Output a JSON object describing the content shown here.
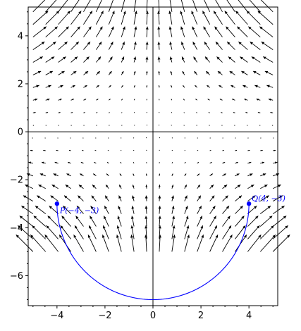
{
  "chart_data": {
    "type": "vector-field",
    "title": "",
    "xlabel": "",
    "ylabel": "",
    "xlim": [
      -5.2,
      5.2
    ],
    "ylim": [
      -7.25,
      5.2
    ],
    "xticks": [
      -4,
      -2,
      0,
      2,
      4
    ],
    "yticks": [
      -6,
      -4,
      -2,
      0,
      2,
      4
    ],
    "xtick_labels": [
      "−4",
      "−2",
      "0",
      "2",
      "4"
    ],
    "ytick_labels": [
      "−6",
      "−4",
      "−2",
      "0",
      "2",
      "4"
    ],
    "minor_tick_step": 0.5,
    "grid": false,
    "axes_through_origin": true,
    "field": {
      "description_formula": "F(x, y) = (-x*y, y^2)",
      "x_range": [
        -5,
        5
      ],
      "y_range": [
        -5,
        5
      ],
      "samples": 20,
      "arrow_color": "#000000"
    },
    "curve": {
      "type": "semicircle",
      "center": [
        0,
        -3
      ],
      "radius": 4,
      "from_angle_deg": 180,
      "to_angle_deg": 360,
      "color": "#0000ff"
    },
    "points": [
      {
        "x": -4,
        "y": -3,
        "label": "P(−4, −3)",
        "color": "#0000ff"
      },
      {
        "x": 4,
        "y": -3,
        "label": "Q(4, −3)",
        "color": "#0000ff"
      }
    ]
  }
}
